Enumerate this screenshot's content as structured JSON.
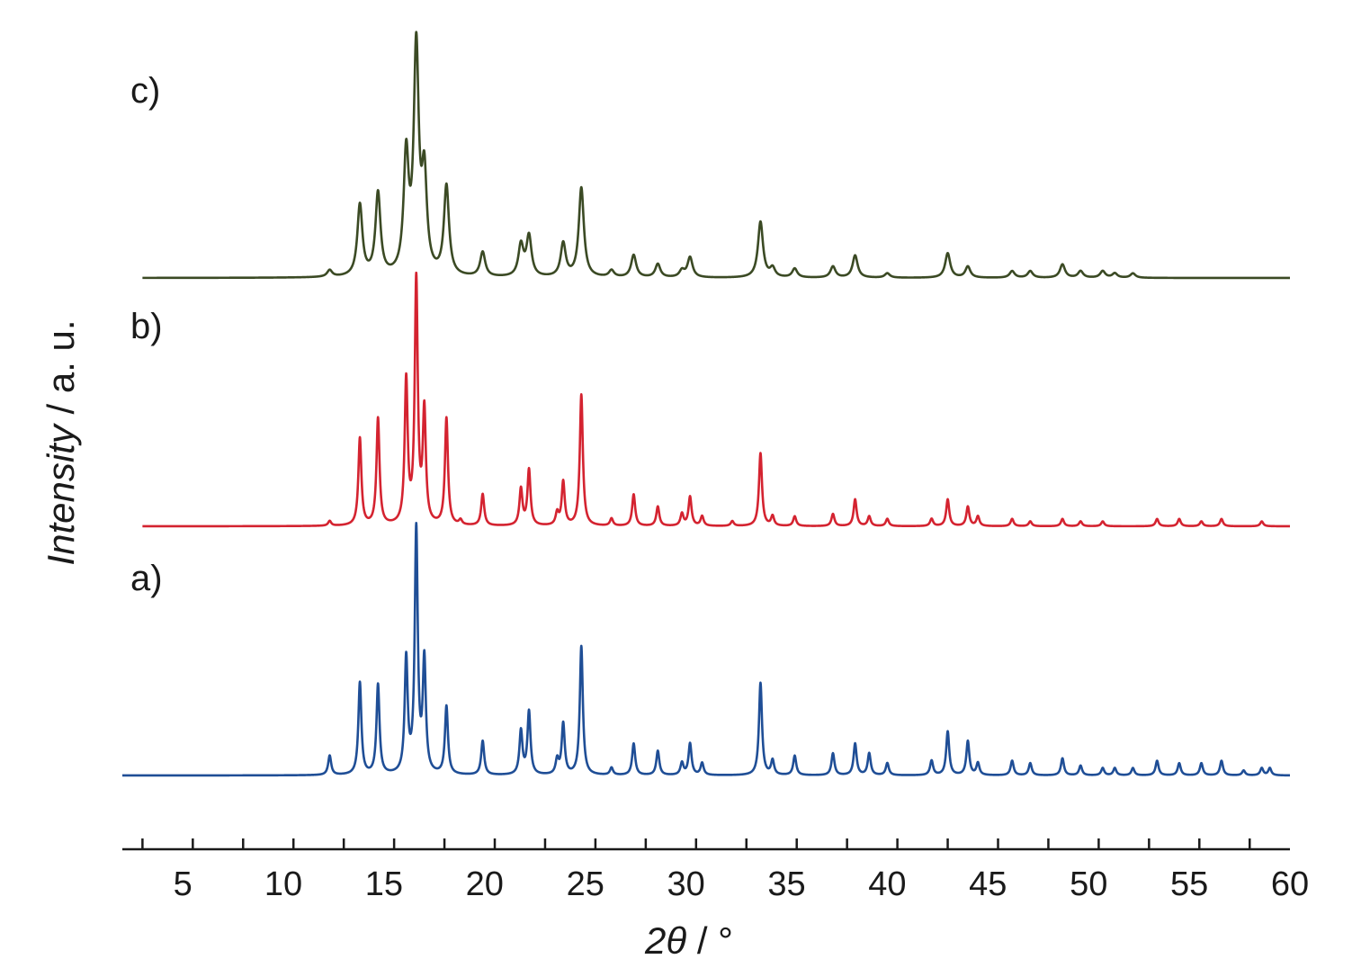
{
  "chart_data": {
    "type": "line",
    "title": "",
    "xlabel": {
      "var": "2θ",
      "unit": "/ °"
    },
    "ylabel": {
      "var": "Intensity",
      "unit": "/ a. u."
    },
    "xlim": [
      2,
      60
    ],
    "x_ticks": [
      5,
      10,
      15,
      20,
      25,
      30,
      35,
      40,
      45,
      50,
      55,
      60
    ],
    "y_ticks": "none",
    "grid": false,
    "legend": "none",
    "series": [
      {
        "label": "a)",
        "color": "#1f4e96",
        "x_start": 2,
        "offset": 0,
        "peak_width": 0.09,
        "peaks": [
          [
            12.3,
            0.08
          ],
          [
            13.8,
            0.38
          ],
          [
            14.7,
            0.37
          ],
          [
            16.1,
            0.47
          ],
          [
            16.6,
            1.0
          ],
          [
            17.0,
            0.46
          ],
          [
            18.1,
            0.28
          ],
          [
            19.9,
            0.14
          ],
          [
            21.8,
            0.18
          ],
          [
            22.2,
            0.26
          ],
          [
            23.6,
            0.06
          ],
          [
            23.9,
            0.21
          ],
          [
            24.8,
            0.53
          ],
          [
            26.3,
            0.03
          ],
          [
            27.4,
            0.13
          ],
          [
            28.6,
            0.1
          ],
          [
            29.8,
            0.05
          ],
          [
            30.2,
            0.13
          ],
          [
            30.8,
            0.05
          ],
          [
            33.7,
            0.38
          ],
          [
            34.3,
            0.06
          ],
          [
            35.4,
            0.08
          ],
          [
            37.3,
            0.09
          ],
          [
            38.4,
            0.13
          ],
          [
            39.1,
            0.09
          ],
          [
            40.0,
            0.05
          ],
          [
            42.2,
            0.06
          ],
          [
            43.0,
            0.18
          ],
          [
            44.0,
            0.14
          ],
          [
            44.5,
            0.05
          ],
          [
            46.2,
            0.06
          ],
          [
            47.1,
            0.05
          ],
          [
            48.7,
            0.07
          ],
          [
            49.6,
            0.04
          ],
          [
            50.7,
            0.03
          ],
          [
            51.3,
            0.03
          ],
          [
            52.2,
            0.03
          ],
          [
            53.4,
            0.06
          ],
          [
            54.5,
            0.05
          ],
          [
            55.6,
            0.05
          ],
          [
            56.6,
            0.06
          ],
          [
            57.7,
            0.02
          ],
          [
            58.6,
            0.03
          ],
          [
            59.0,
            0.03
          ]
        ]
      },
      {
        "label": "b)",
        "color": "#d42330",
        "x_start": 3,
        "offset": 1,
        "peak_width": 0.09,
        "peaks": [
          [
            12.3,
            0.02
          ],
          [
            13.8,
            0.36
          ],
          [
            14.7,
            0.44
          ],
          [
            16.1,
            0.59
          ],
          [
            16.6,
            1.0
          ],
          [
            17.0,
            0.46
          ],
          [
            18.1,
            0.44
          ],
          [
            18.8,
            0.02
          ],
          [
            19.9,
            0.13
          ],
          [
            21.8,
            0.15
          ],
          [
            22.2,
            0.23
          ],
          [
            23.6,
            0.05
          ],
          [
            23.9,
            0.18
          ],
          [
            24.8,
            0.54
          ],
          [
            26.3,
            0.03
          ],
          [
            27.4,
            0.13
          ],
          [
            28.6,
            0.08
          ],
          [
            29.8,
            0.05
          ],
          [
            30.2,
            0.12
          ],
          [
            30.8,
            0.04
          ],
          [
            32.3,
            0.02
          ],
          [
            33.7,
            0.3
          ],
          [
            34.3,
            0.04
          ],
          [
            35.4,
            0.04
          ],
          [
            37.3,
            0.05
          ],
          [
            38.4,
            0.11
          ],
          [
            39.1,
            0.04
          ],
          [
            40.0,
            0.03
          ],
          [
            42.2,
            0.03
          ],
          [
            43.0,
            0.11
          ],
          [
            44.0,
            0.08
          ],
          [
            44.5,
            0.04
          ],
          [
            46.2,
            0.03
          ],
          [
            47.1,
            0.02
          ],
          [
            48.7,
            0.03
          ],
          [
            49.6,
            0.02
          ],
          [
            50.7,
            0.02
          ],
          [
            53.4,
            0.03
          ],
          [
            54.5,
            0.03
          ],
          [
            55.6,
            0.02
          ],
          [
            56.6,
            0.03
          ],
          [
            58.6,
            0.02
          ]
        ]
      },
      {
        "label": "c)",
        "color": "#3b4a24",
        "x_start": 3,
        "offset": 2,
        "peak_width": 0.15,
        "peaks": [
          [
            12.3,
            0.03
          ],
          [
            13.8,
            0.32
          ],
          [
            14.7,
            0.37
          ],
          [
            16.1,
            0.52
          ],
          [
            16.6,
            1.0
          ],
          [
            17.0,
            0.42
          ],
          [
            18.1,
            0.4
          ],
          [
            19.9,
            0.11
          ],
          [
            21.8,
            0.14
          ],
          [
            22.2,
            0.18
          ],
          [
            23.9,
            0.15
          ],
          [
            24.8,
            0.4
          ],
          [
            26.3,
            0.03
          ],
          [
            27.4,
            0.1
          ],
          [
            28.6,
            0.06
          ],
          [
            29.8,
            0.03
          ],
          [
            30.2,
            0.09
          ],
          [
            33.7,
            0.25
          ],
          [
            34.3,
            0.04
          ],
          [
            35.4,
            0.04
          ],
          [
            37.3,
            0.05
          ],
          [
            38.4,
            0.1
          ],
          [
            40.0,
            0.02
          ],
          [
            43.0,
            0.11
          ],
          [
            44.0,
            0.05
          ],
          [
            46.2,
            0.03
          ],
          [
            47.1,
            0.03
          ],
          [
            48.7,
            0.06
          ],
          [
            49.6,
            0.03
          ],
          [
            50.7,
            0.03
          ],
          [
            51.3,
            0.02
          ],
          [
            52.2,
            0.02
          ]
        ]
      }
    ]
  }
}
